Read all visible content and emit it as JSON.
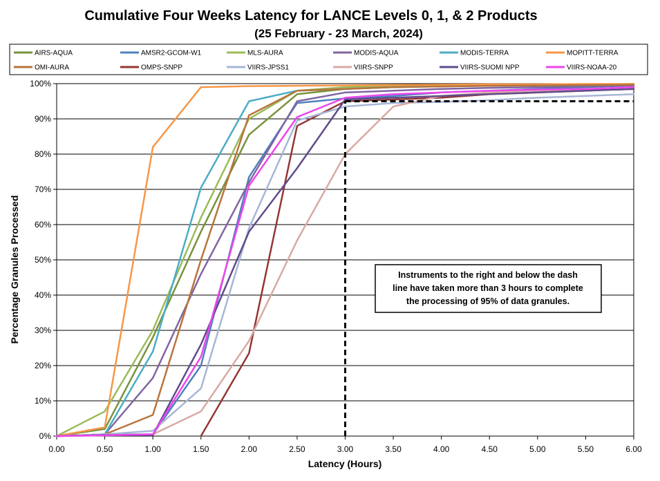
{
  "chart_data": {
    "type": "line",
    "title": "Cumulative Four Weeks Latency  for LANCE Levels 0, 1, & 2 Products",
    "subtitle": "(25  February   -  23  March,  2024)",
    "xlabel": "Latency (Hours)",
    "ylabel": "Percentage Granules Processed",
    "xlim": [
      0,
      6
    ],
    "ylim": [
      0,
      100
    ],
    "x_ticks": [
      "0.00",
      "0.50",
      "1.00",
      "1.50",
      "2.00",
      "2.50",
      "3.00",
      "3.50",
      "4.00",
      "4.50",
      "5.00",
      "5.50",
      "6.00"
    ],
    "y_ticks": [
      "0%",
      "10%",
      "20%",
      "30%",
      "40%",
      "50%",
      "60%",
      "70%",
      "80%",
      "90%",
      "100%"
    ],
    "grid": "horizontal",
    "legend_position": "top",
    "annotation": {
      "lines": [
        "Instruments to the right and below the dash",
        "line have taken more than 3 hours to complete",
        "the processing of 95% of data granules."
      ]
    },
    "threshold": {
      "x": 3.0,
      "y": 95
    },
    "x": [
      0.0,
      0.5,
      1.0,
      1.5,
      2.0,
      2.5,
      3.0,
      3.5,
      4.0,
      4.5,
      5.0,
      5.5,
      6.0
    ],
    "series": [
      {
        "name": "AIRS-AQUA",
        "color": "#77933C",
        "values": [
          0,
          2,
          28,
          58,
          85.5,
          97,
          98.5,
          99,
          99.3,
          99.5,
          99.6,
          99.7,
          99.8
        ]
      },
      {
        "name": "AMSR2-GCOM-W1",
        "color": "#4F81BD",
        "values": [
          0,
          0.5,
          0.5,
          20,
          73.5,
          94.5,
          95.8,
          96.5,
          97.5,
          98,
          98.5,
          99,
          99.5
        ]
      },
      {
        "name": "MLS-AURA",
        "color": "#9BBB59",
        "values": [
          0,
          7,
          30,
          62,
          90,
          98,
          99,
          99.3,
          99.5,
          99.6,
          99.7,
          99.8,
          99.9
        ]
      },
      {
        "name": "MODIS-AQUA",
        "color": "#8064A2",
        "values": [
          0,
          0.5,
          16.5,
          46,
          72,
          95,
          97.5,
          98,
          98.5,
          98.8,
          99,
          99.2,
          99.5
        ]
      },
      {
        "name": "MODIS-TERRA",
        "color": "#4BACC6",
        "values": [
          0,
          0.5,
          24,
          70.5,
          95,
          98,
          98.5,
          99,
          99.2,
          99.4,
          99.5,
          99.6,
          99.7
        ]
      },
      {
        "name": "MOPITT-TERRA",
        "color": "#F79646",
        "values": [
          0,
          2.5,
          82,
          99,
          99.3,
          99.4,
          99.5,
          99.6,
          99.7,
          99.8,
          99.8,
          99.9,
          99.9
        ]
      },
      {
        "name": "OMI-AURA",
        "color": "#B8733B",
        "values": [
          0,
          0.5,
          6,
          50,
          91,
          98,
          98.5,
          99,
          99.2,
          99.4,
          99.5,
          99.6,
          99.7
        ]
      },
      {
        "name": "OMPS-SNPP",
        "color": "#943634",
        "values": [
          null,
          null,
          null,
          0,
          23.5,
          88,
          95,
          95.5,
          96,
          97,
          97.5,
          98,
          98.5
        ]
      },
      {
        "name": "VIIRS-JPSS1",
        "color": "#A6B6D6",
        "values": [
          0,
          0.5,
          1.5,
          13.5,
          59,
          89.5,
          93.5,
          94.5,
          94.8,
          95.3,
          96,
          96.5,
          97
        ]
      },
      {
        "name": "VIIRS-SNPP",
        "color": "#D9A9A4",
        "values": [
          0,
          0.3,
          0.5,
          7,
          27,
          55.5,
          80,
          93.5,
          96.5,
          97.5,
          98,
          98.5,
          99
        ]
      },
      {
        "name": "VIIRS-SUOMI NPP",
        "color": "#5F4B8B",
        "values": [
          0,
          0.3,
          0.3,
          26,
          58,
          76,
          95.5,
          96,
          96.5,
          97,
          97.5,
          98,
          98.5
        ]
      },
      {
        "name": "VIIRS-NOAA-20",
        "color": "#EE44EE",
        "values": [
          0,
          0.2,
          0.5,
          22.5,
          71,
          90.5,
          96,
          97,
          97.5,
          98,
          98.3,
          98.5,
          99
        ]
      }
    ]
  }
}
